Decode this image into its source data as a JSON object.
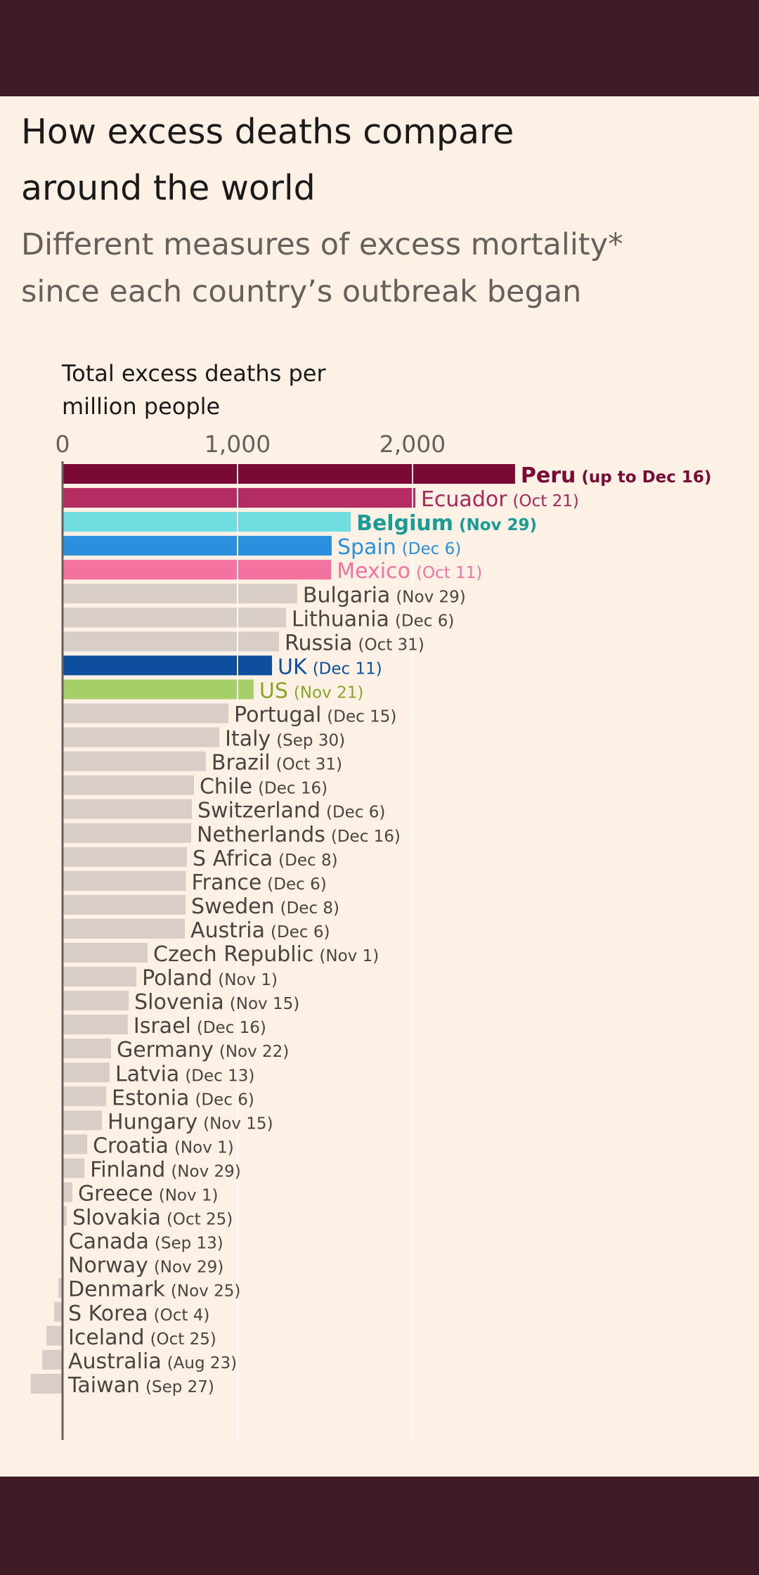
{
  "header": {
    "title_line1": "How excess deaths compare",
    "title_line2": "around the world",
    "subtitle_line1": "Different measures of excess mortality*",
    "subtitle_line2": "since each country’s outbreak began"
  },
  "chart_data": {
    "type": "bar",
    "orientation": "horizontal",
    "title": "How excess deaths compare around the world",
    "subtitle": "Different measures of excess mortality* since each country’s outbreak began",
    "xlabel_line1": "Total excess deaths per",
    "xlabel_line2": "million people",
    "xlim": [
      -300,
      3000
    ],
    "xticks": [
      0,
      1000,
      2000
    ],
    "xtick_labels": [
      "0",
      "1,000",
      "2,000"
    ],
    "grid": true,
    "default_bar_color": "#d9cec7",
    "default_text_color": "#4a4440",
    "rows": [
      {
        "name": "Peru",
        "date": "(up to Dec 16)",
        "value": 2586,
        "bar_color": "#7a0a35",
        "text_color": "#7a0a35",
        "bold": true
      },
      {
        "name": "Ecuador",
        "date": "(Oct 21)",
        "value": 2016,
        "bar_color": "#b42d62",
        "text_color": "#a8265a"
      },
      {
        "name": "Belgium",
        "date": "(Nov 29)",
        "value": 1647,
        "bar_color": "#6fdde0",
        "text_color": "#1a9b96",
        "bold": true
      },
      {
        "name": "Spain",
        "date": "(Dec 6)",
        "value": 1538,
        "bar_color": "#2a8fdc",
        "text_color": "#2a8fdc"
      },
      {
        "name": "Mexico",
        "date": "(Oct 11)",
        "value": 1535,
        "bar_color": "#f472a0",
        "text_color": "#f472a0"
      },
      {
        "name": "Bulgaria",
        "date": "(Nov 29)",
        "value": 1341
      },
      {
        "name": "Lithuania",
        "date": "(Dec 6)",
        "value": 1277
      },
      {
        "name": "Russia",
        "date": "(Oct 31)",
        "value": 1237
      },
      {
        "name": "UK",
        "date": "(Dec 11)",
        "value": 1197,
        "bar_color": "#0d4f9e",
        "text_color": "#0d4f9e"
      },
      {
        "name": "US",
        "date": "(Nov 21)",
        "value": 1092,
        "bar_color": "#a6cf6a",
        "text_color": "#8aa424"
      },
      {
        "name": "Portugal",
        "date": "(Dec 15)",
        "value": 948
      },
      {
        "name": "Italy",
        "date": "(Sep 30)",
        "value": 896
      },
      {
        "name": "Brazil",
        "date": "(Oct 31)",
        "value": 819
      },
      {
        "name": "Chile",
        "date": "(Dec 16)",
        "value": 751
      },
      {
        "name": "Switzerland",
        "date": "(Dec 6)",
        "value": 739
      },
      {
        "name": "Netherlands",
        "date": "(Dec 16)",
        "value": 735
      },
      {
        "name": "S Africa",
        "date": "(Dec 8)",
        "value": 711
      },
      {
        "name": "France",
        "date": "(Dec 6)",
        "value": 705
      },
      {
        "name": "Sweden",
        "date": "(Dec 8)",
        "value": 703
      },
      {
        "name": "Austria",
        "date": "(Dec 6)",
        "value": 699
      },
      {
        "name": "Czech Republic",
        "date": "(Nov 1)",
        "value": 486
      },
      {
        "name": "Poland",
        "date": "(Nov 1)",
        "value": 422
      },
      {
        "name": "Slovenia",
        "date": "(Nov 15)",
        "value": 378
      },
      {
        "name": "Israel",
        "date": "(Dec 16)",
        "value": 373
      },
      {
        "name": "Germany",
        "date": "(Nov 22)",
        "value": 277
      },
      {
        "name": "Latvia",
        "date": "(Dec 13)",
        "value": 269
      },
      {
        "name": "Estonia",
        "date": "(Dec 6)",
        "value": 249
      },
      {
        "name": "Hungary",
        "date": "(Nov 15)",
        "value": 225
      },
      {
        "name": "Croatia",
        "date": "(Nov 1)",
        "value": 141
      },
      {
        "name": "Finland",
        "date": "(Nov 29)",
        "value": 125
      },
      {
        "name": "Greece",
        "date": "(Nov 1)",
        "value": 56
      },
      {
        "name": "Slovakia",
        "date": "(Oct 25)",
        "value": 24
      },
      {
        "name": "Canada",
        "date": "(Sep 13)",
        "value": 3
      },
      {
        "name": "Norway",
        "date": "(Nov 29)",
        "value": -8
      },
      {
        "name": "Denmark",
        "date": "(Nov 25)",
        "value": -24
      },
      {
        "name": "S Korea",
        "date": "(Oct 4)",
        "value": -48
      },
      {
        "name": "Iceland",
        "date": "(Oct 25)",
        "value": -92
      },
      {
        "name": "Australia",
        "date": "(Aug 23)",
        "value": -116
      },
      {
        "name": "Taiwan",
        "date": "(Sep 27)",
        "value": -181
      }
    ]
  },
  "colors": {
    "background": "#fdf1e6",
    "frame": "#3f1b26"
  }
}
